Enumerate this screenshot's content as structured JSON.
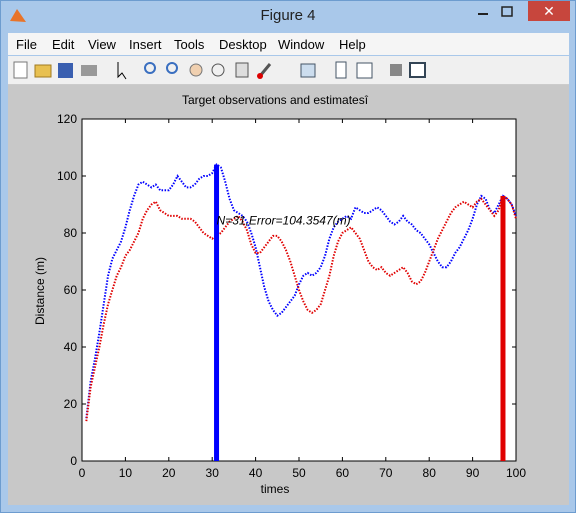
{
  "window": {
    "title": "Figure 4",
    "menu": [
      "File",
      "Edit",
      "View",
      "Insert",
      "Tools",
      "Desktop",
      "Window",
      "Help"
    ]
  },
  "chart_data": {
    "type": "line",
    "title": "Target observations and estimatesî",
    "xlabel": "times",
    "ylabel": "Distance (m)",
    "x": [
      1,
      2,
      3,
      4,
      5,
      6,
      7,
      8,
      9,
      10,
      11,
      12,
      13,
      14,
      15,
      16,
      17,
      18,
      19,
      20,
      21,
      22,
      23,
      24,
      25,
      26,
      27,
      28,
      29,
      30,
      31,
      32,
      33,
      34,
      35,
      36,
      37,
      38,
      39,
      40,
      41,
      42,
      43,
      44,
      45,
      46,
      47,
      48,
      49,
      50,
      51,
      52,
      53,
      54,
      55,
      56,
      57,
      58,
      59,
      60,
      61,
      62,
      63,
      64,
      65,
      66,
      67,
      68,
      69,
      70,
      71,
      72,
      73,
      74,
      75,
      76,
      77,
      78,
      79,
      80,
      81,
      82,
      83,
      84,
      85,
      86,
      87,
      88,
      89,
      90,
      91,
      92,
      93,
      94,
      95,
      96,
      97,
      98,
      99,
      100
    ],
    "series": [
      {
        "color": "#0000ff",
        "values": [
          15,
          28,
          36,
          45,
          55,
          65,
          71,
          74,
          77,
          82,
          88,
          93,
          97,
          98,
          97,
          96,
          97,
          95,
          95,
          95,
          97,
          100,
          98,
          96,
          96,
          97,
          99,
          100,
          100,
          101,
          104,
          103,
          98,
          92,
          88,
          87,
          86,
          84,
          80,
          75,
          68,
          61,
          56,
          53,
          51,
          52,
          54,
          56,
          58,
          62,
          65,
          66,
          65,
          66,
          68,
          72,
          78,
          82,
          84,
          85,
          86,
          85,
          89,
          88,
          87,
          87,
          88,
          89,
          88,
          86,
          84,
          83,
          84,
          86,
          84,
          83,
          81,
          80,
          78,
          76,
          73,
          70,
          68,
          68,
          70,
          73,
          75,
          78,
          81,
          85,
          90,
          93,
          92,
          88,
          87,
          90,
          93,
          92,
          90,
          86
        ]
      },
      {
        "color": "#e00000",
        "values": [
          14,
          26,
          33,
          40,
          48,
          55,
          60,
          65,
          68,
          72,
          74,
          77,
          80,
          85,
          88,
          90,
          91,
          88,
          87,
          86,
          86,
          86,
          85,
          85,
          85,
          84,
          82,
          80,
          79,
          78,
          79,
          80,
          82,
          84,
          85,
          86,
          84,
          81,
          76,
          73,
          73,
          75,
          77,
          79,
          79,
          77,
          74,
          70,
          65,
          60,
          56,
          53,
          52,
          53,
          55,
          60,
          65,
          72,
          77,
          80,
          81,
          82,
          80,
          78,
          74,
          70,
          68,
          67,
          68,
          66,
          65,
          66,
          67,
          68,
          66,
          63,
          62,
          63,
          66,
          70,
          74,
          78,
          81,
          84,
          87,
          89,
          90,
          91,
          90,
          89,
          91,
          92,
          90,
          88,
          86,
          88,
          93,
          92,
          90,
          85
        ]
      }
    ],
    "bars": [
      {
        "x": 31,
        "value": 104,
        "color": "#0000ff"
      },
      {
        "x": 97,
        "value": 93,
        "color": "#e00000"
      }
    ],
    "annotation": {
      "text": "N=31,Error=104.3547(m)",
      "x": 31,
      "y": 83
    },
    "xlim": [
      0,
      100
    ],
    "xticks": [
      0,
      10,
      20,
      30,
      40,
      50,
      60,
      70,
      80,
      90,
      100
    ],
    "ylim": [
      0,
      120
    ],
    "yticks": [
      0,
      20,
      40,
      60,
      80,
      100,
      120
    ],
    "grid": false
  }
}
